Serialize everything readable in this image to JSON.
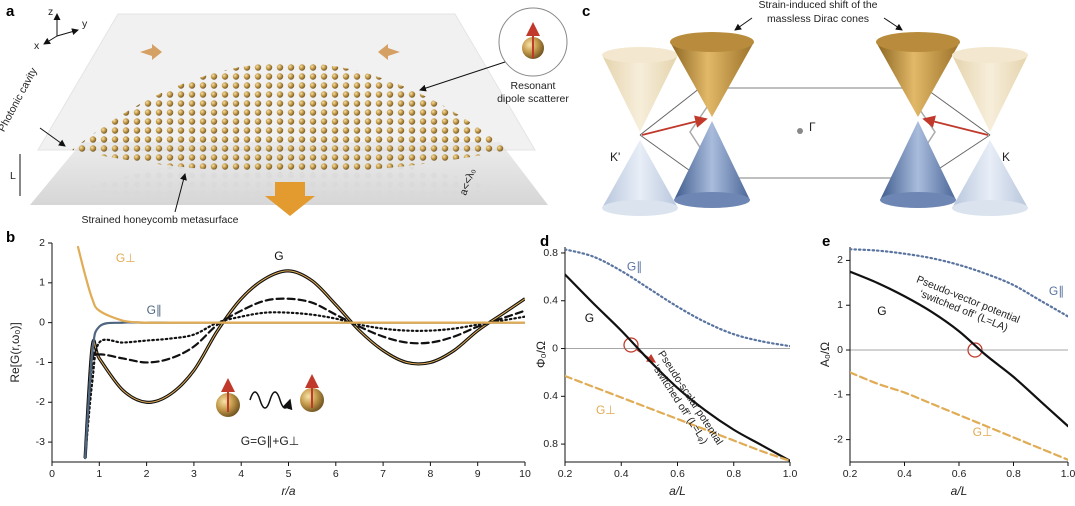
{
  "panel_a": {
    "letter": "a",
    "axes": [
      "z",
      "y",
      "x"
    ],
    "cavity_label": "Photonic cavity",
    "height_label": "L",
    "scatterer_label": [
      "Resonant",
      "dipole scatterer"
    ],
    "metasurface_label": "Strained honeycomb metasurface",
    "lattice_label": "a<<λ₀"
  },
  "panel_c": {
    "letter": "c",
    "caption": [
      "Strain-induced shift of the",
      "massless Dirac cones"
    ],
    "points": [
      "K'",
      "Γ",
      "K"
    ]
  },
  "chart_data": [
    {
      "type": "line",
      "panel_label": "b",
      "xlabel": "r/a",
      "ylabel": "Re[G(r,ω₀)]",
      "xlim": [
        0,
        10
      ],
      "ylim": [
        -3.5,
        2
      ],
      "xticks": [
        0,
        1,
        2,
        3,
        4,
        5,
        6,
        7,
        8,
        9,
        10
      ],
      "yticks": [
        -3,
        -2,
        -1,
        0,
        1,
        2
      ],
      "inset_label": "G=G∥+G⊥",
      "x": [
        0.55,
        0.7,
        0.85,
        1,
        1.5,
        2,
        2.5,
        3,
        3.5,
        4,
        4.5,
        5,
        5.5,
        6,
        6.5,
        7,
        7.5,
        8,
        8.5,
        9,
        9.5,
        10
      ],
      "series": [
        {
          "name": "G",
          "color": "#111111",
          "dash": "solid",
          "values": [
            null,
            -3.4,
            -0.6,
            -0.9,
            -1.7,
            -2.0,
            -1.8,
            -1.2,
            -0.2,
            0.6,
            1.1,
            1.3,
            1.05,
            0.45,
            -0.2,
            -0.7,
            -1.0,
            -1.0,
            -0.7,
            -0.2,
            0.2,
            0.6
          ]
        },
        {
          "color": "#111111",
          "dash": "dashed",
          "values": [
            null,
            -3.4,
            -1.0,
            -0.8,
            -0.9,
            -1.0,
            -0.9,
            -0.6,
            -0.05,
            0.3,
            0.55,
            0.6,
            0.5,
            0.2,
            -0.1,
            -0.35,
            -0.5,
            -0.5,
            -0.35,
            -0.1,
            0.1,
            0.3
          ]
        },
        {
          "color": "#111111",
          "dash": "dotted",
          "values": [
            null,
            -3.4,
            -1.5,
            -0.5,
            -0.5,
            -0.45,
            -0.4,
            -0.3,
            0,
            0.15,
            0.25,
            0.25,
            0.2,
            0.1,
            -0.05,
            -0.15,
            -0.2,
            -0.2,
            -0.15,
            -0.05,
            0.05,
            0.15
          ]
        },
        {
          "name": "G∥",
          "color": "#4f6680",
          "dash": "solid",
          "values": [
            null,
            -3.4,
            -0.8,
            -0.1,
            0,
            0,
            0,
            0,
            0,
            0,
            0,
            0,
            0,
            0,
            0,
            0,
            0,
            0,
            0,
            0,
            0,
            0
          ]
        },
        {
          "name": "G⊥",
          "color": "#e0ac55",
          "dash": "solid",
          "values": [
            1.9,
            1.2,
            0.6,
            0.3,
            0.05,
            0,
            0,
            0,
            0,
            0,
            0,
            0,
            0,
            0,
            0,
            0,
            0,
            0,
            0,
            0,
            0,
            0
          ]
        }
      ]
    },
    {
      "type": "line",
      "panel_label": "d",
      "xlabel": "a/L",
      "ylabel": "Φ₀/Ω",
      "xlim": [
        0.2,
        1
      ],
      "ylim": [
        -0.95,
        0.85
      ],
      "zero_line": true,
      "xticks": [
        0.2,
        0.4,
        0.6,
        0.8,
        {
          "value": 1,
          "label": "1.0"
        }
      ],
      "yticks": [
        0.8,
        0.4,
        0,
        {
          "value": -0.4,
          "label": "0.4"
        },
        {
          "value": -0.8,
          "label": "0.8"
        }
      ],
      "annotation": [
        "Pseudo-scalar potential",
        "‘switched off’ (L=Lᵩ)"
      ],
      "x": [
        0.2,
        0.3,
        0.4,
        0.5,
        0.6,
        0.7,
        0.8,
        0.9,
        1.0
      ],
      "series": [
        {
          "name": "G∥",
          "color": "#5a74a0",
          "dash": "dotted",
          "values": [
            0.83,
            0.77,
            0.65,
            0.5,
            0.35,
            0.22,
            0.12,
            0.06,
            0.02
          ]
        },
        {
          "name": "G",
          "color": "#111111",
          "dash": "solid",
          "values": [
            0.62,
            0.38,
            0.15,
            -0.1,
            -0.33,
            -0.52,
            -0.68,
            -0.81,
            -0.94
          ]
        },
        {
          "name": "G⊥",
          "color": "#e0ac55",
          "dash": "dashed",
          "values": [
            -0.23,
            -0.32,
            -0.41,
            -0.5,
            -0.59,
            -0.68,
            -0.77,
            -0.86,
            -0.94
          ]
        }
      ]
    },
    {
      "type": "line",
      "panel_label": "e",
      "xlabel": "a/L",
      "ylabel": "A₀/Ω",
      "xlim": [
        0.2,
        1
      ],
      "ylim": [
        -2.5,
        2.3
      ],
      "zero_line": true,
      "xticks": [
        0.2,
        0.4,
        0.6,
        0.8,
        {
          "value": 1,
          "label": "1.0"
        }
      ],
      "yticks": [
        -2,
        -1,
        0,
        1,
        2
      ],
      "annotation": [
        "Pseudo-vector potential",
        "‘switched off’ (L=LA)"
      ],
      "x": [
        0.2,
        0.3,
        0.4,
        0.5,
        0.6,
        0.7,
        0.8,
        0.9,
        1.0
      ],
      "series": [
        {
          "name": "G∥",
          "color": "#5a74a0",
          "dash": "dotted",
          "values": [
            2.25,
            2.22,
            2.15,
            2.05,
            1.9,
            1.7,
            1.45,
            1.1,
            0.75
          ]
        },
        {
          "name": "G",
          "color": "#111111",
          "dash": "solid",
          "values": [
            1.75,
            1.5,
            1.2,
            0.85,
            0.42,
            -0.12,
            -0.6,
            -1.15,
            -1.7
          ]
        },
        {
          "name": "G⊥",
          "color": "#e0ac55",
          "dash": "dashed",
          "values": [
            -0.5,
            -0.75,
            -0.95,
            -1.2,
            -1.45,
            -1.7,
            -1.95,
            -2.2,
            -2.45
          ]
        }
      ]
    }
  ]
}
